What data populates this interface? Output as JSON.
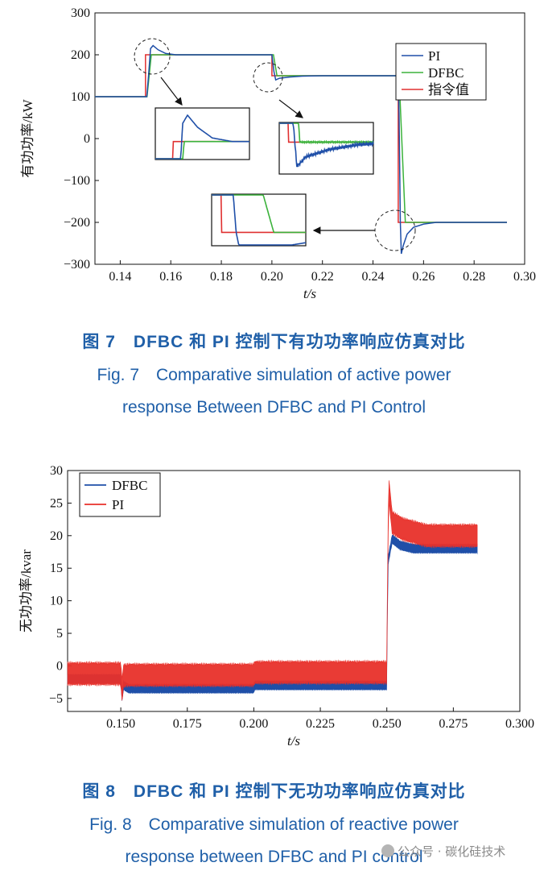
{
  "chart_data": [
    {
      "type": "line",
      "title": "",
      "xlabel": "t/s",
      "ylabel": "有功功率/kW",
      "xlim": [
        0.13,
        0.3
      ],
      "ylim": [
        -300,
        300
      ],
      "xticks": [
        "0.14",
        "0.16",
        "0.18",
        "0.20",
        "0.22",
        "0.24",
        "0.26",
        "0.28",
        "0.30"
      ],
      "yticks": [
        "300",
        "200",
        "100",
        "0",
        "−100",
        "−200",
        "−300"
      ],
      "legend_position": "top-right",
      "series": [
        {
          "name": "PI",
          "color": "#1f4fa8",
          "x": [
            0.13,
            0.1505,
            0.1512,
            0.152,
            0.153,
            0.155,
            0.158,
            0.162,
            0.17,
            0.18,
            0.2,
            0.2008,
            0.2015,
            0.203,
            0.207,
            0.212,
            0.22,
            0.25,
            0.2503,
            0.2508,
            0.2512,
            0.252,
            0.2535,
            0.256,
            0.26,
            0.265,
            0.293
          ],
          "y": [
            100,
            100,
            150,
            215,
            222,
            212,
            203,
            200,
            200,
            200,
            200,
            160,
            140,
            144,
            147,
            149,
            150,
            150,
            60,
            -200,
            -275,
            -255,
            -228,
            -212,
            -204,
            -200,
            -200
          ]
        },
        {
          "name": "DFBC",
          "color": "#3bb23b",
          "x": [
            0.13,
            0.1506,
            0.1523,
            0.16,
            0.2,
            0.2006,
            0.202,
            0.22,
            0.2503,
            0.2528,
            0.26,
            0.293
          ],
          "y": [
            100,
            100,
            200,
            200,
            200,
            200,
            150,
            150,
            150,
            -200,
            -200,
            -200
          ]
        },
        {
          "name": "指令值",
          "color": "#e03030",
          "x": [
            0.13,
            0.15,
            0.15,
            0.2,
            0.2,
            0.25,
            0.25,
            0.293
          ],
          "y": [
            100,
            100,
            200,
            200,
            150,
            150,
            -200,
            -200
          ]
        }
      ]
    },
    {
      "type": "line",
      "title": "",
      "xlabel": "t/s",
      "ylabel": "无功功率/kvar",
      "xlim": [
        0.13,
        0.3
      ],
      "ylim": [
        -7,
        30
      ],
      "xticks": [
        "0.150",
        "0.175",
        "0.200",
        "0.225",
        "0.250",
        "0.275",
        "0.300"
      ],
      "yticks": [
        "30",
        "25",
        "20",
        "15",
        "10",
        "5",
        "0",
        "−5"
      ],
      "legend_position": "top-left",
      "series": [
        {
          "name": "DFBC",
          "color": "#1f4fa8",
          "x": [
            0.13,
            0.15,
            0.1505,
            0.151,
            0.153,
            0.2,
            0.2003,
            0.25,
            0.2504,
            0.252,
            0.255,
            0.26,
            0.284
          ],
          "y": [
            -2,
            -2,
            -5,
            -3,
            -3.5,
            -3.5,
            -3,
            -3,
            16,
            19.5,
            18.5,
            18,
            18
          ],
          "band": 1.0
        },
        {
          "name": "PI",
          "color": "#e8302a",
          "x": [
            0.13,
            0.15,
            0.1505,
            0.151,
            0.153,
            0.2,
            0.2003,
            0.25,
            0.2504,
            0.2508,
            0.252,
            0.256,
            0.265,
            0.284
          ],
          "y": [
            -1.2,
            -1.2,
            -4,
            -1.5,
            -1.4,
            -1.4,
            -1.0,
            -1.0,
            20,
            27,
            22,
            21,
            20,
            20
          ],
          "band": 2.5
        }
      ]
    }
  ],
  "captions": {
    "fig7_zh": "图 7　DFBC 和 PI 控制下有功功率响应仿真对比",
    "fig7_en_1": "Fig. 7　Comparative simulation of active power",
    "fig7_en_2": "response Between DFBC and PI Control",
    "fig8_zh": "图 8　DFBC 和 PI 控制下无功功率响应仿真对比",
    "fig8_en_1": "Fig. 8　Comparative simulation of reactive power",
    "fig8_en_2": "response between DFBC and PI control"
  },
  "watermark": {
    "text": "公众号 · 碳化硅技术",
    "icon": "wechat-icon"
  }
}
